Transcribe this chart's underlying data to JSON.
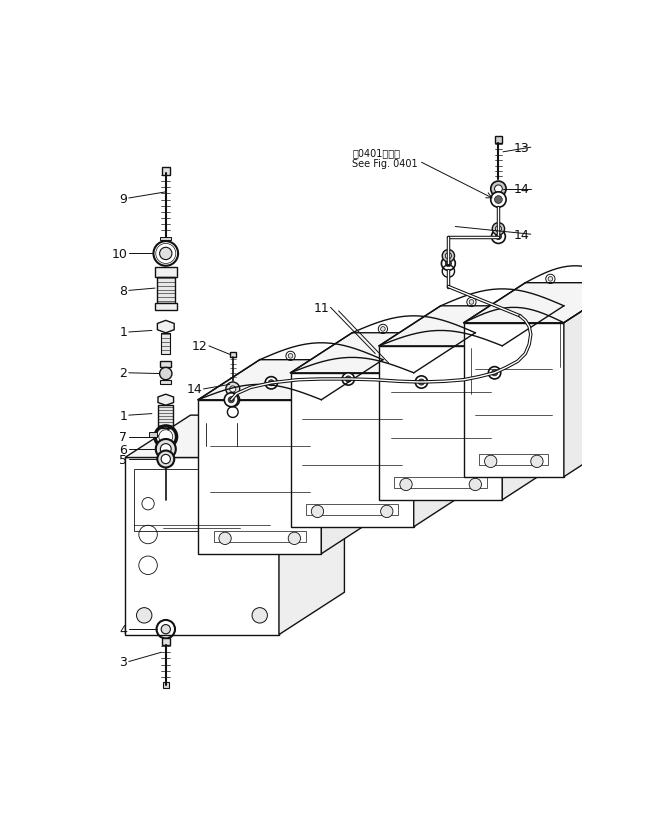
{
  "background_color": "#ffffff",
  "line_color": "#111111",
  "text_color": "#111111",
  "fig_width": 6.48,
  "fig_height": 8.37,
  "dpi": 100,
  "fs_label": 9,
  "fs_note": 7,
  "note_line1": "第0401图参照",
  "note_line2": "See Fig. 0401"
}
